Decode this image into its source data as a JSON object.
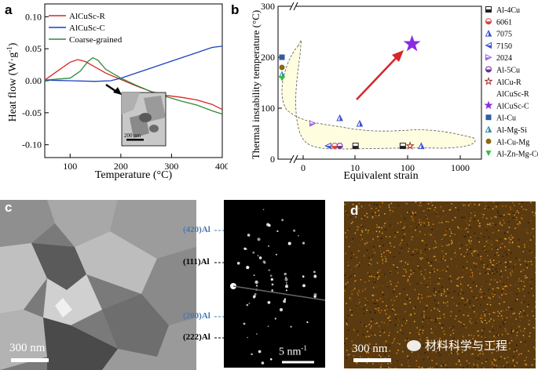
{
  "panel_a": {
    "letter": "a",
    "ylabel_main": "Heat flow (W·g",
    "ylabel_sup": "-1",
    "ylabel_close": ")",
    "xlabel": "Temperature (°C)",
    "inset_scale": "200 nm",
    "colors": {
      "R": "#d62728",
      "C": "#1f3fbf",
      "G": "#2e8b3a"
    }
  },
  "panel_b": {
    "letter": "b",
    "ylabel": "Thermal instability temperature (°C)",
    "xlabel": "Equivalent strain",
    "region_color": "#fffde0"
  },
  "panel_c": {
    "letter": "c",
    "scale_left": "300 nm",
    "scale_saed_main": "5 nm",
    "scale_saed_sup": "-1",
    "ring_labels": [
      {
        "text": "(420)Al",
        "color": "#4a78b0"
      },
      {
        "text": "(111)Al",
        "color": "#000000"
      },
      {
        "text": "(200)Al",
        "color": "#4a78b0"
      },
      {
        "text": "(222)Al",
        "color": "#000000"
      }
    ]
  },
  "panel_d": {
    "letter": "d",
    "scale": "300 nm",
    "watermark": "材料科学与工程"
  },
  "chart_data": [
    {
      "type": "line",
      "title": "",
      "xlabel": "Temperature (°C)",
      "ylabel": "Heat flow (W·g-1)",
      "xlim": [
        50,
        400
      ],
      "ylim": [
        -0.12,
        0.12
      ],
      "xticks": [
        100,
        200,
        300,
        400
      ],
      "yticks": [
        -0.1,
        -0.05,
        0.0,
        0.05,
        0.1
      ],
      "legend_position": "top-left",
      "series": [
        {
          "name": "AlCuSc-R",
          "color": "#d62728",
          "x": [
            50,
            80,
            100,
            115,
            130,
            150,
            170,
            200,
            230,
            260,
            290,
            320,
            350,
            380,
            400
          ],
          "y": [
            0.001,
            0.018,
            0.029,
            0.033,
            0.03,
            0.021,
            0.012,
            0.002,
            -0.008,
            -0.017,
            -0.023,
            -0.026,
            -0.03,
            -0.037,
            -0.045
          ]
        },
        {
          "name": "AlCuSc-C",
          "color": "#1f3fbf",
          "x": [
            50,
            100,
            150,
            180,
            200,
            230,
            260,
            290,
            320,
            350,
            380,
            400
          ],
          "y": [
            0.001,
            0.0,
            -0.001,
            0.0,
            0.004,
            0.012,
            0.02,
            0.028,
            0.036,
            0.044,
            0.052,
            0.054
          ]
        },
        {
          "name": "Coarse-grained",
          "color": "#2e8b3a",
          "x": [
            50,
            100,
            120,
            135,
            145,
            155,
            170,
            200,
            230,
            260,
            290,
            320,
            350,
            380,
            400
          ],
          "y": [
            0.001,
            0.004,
            0.015,
            0.03,
            0.036,
            0.032,
            0.018,
            0.004,
            -0.007,
            -0.017,
            -0.025,
            -0.032,
            -0.038,
            -0.047,
            -0.052
          ]
        }
      ]
    },
    {
      "type": "scatter",
      "title": "",
      "xlabel": "Equivalent strain",
      "ylabel": "Thermal instability temperature (°C)",
      "ylim": [
        0,
        300
      ],
      "yticks": [
        0,
        100,
        200,
        300
      ],
      "xticks": [
        "0",
        "10",
        "100",
        "1000"
      ],
      "legend_position": "right",
      "series": [
        {
          "name": "Al-4Cu",
          "marker": "square-half",
          "color": "#222222",
          "x": [
            10,
            80
          ],
          "y": [
            26,
            26
          ]
        },
        {
          "name": "6061",
          "marker": "circle-half",
          "color": "#e04040",
          "x": [
            4
          ],
          "y": [
            26
          ]
        },
        {
          "name": "7075",
          "marker": "triangle-up",
          "color": "#3a4fd0",
          "x": [
            5,
            12,
            180
          ],
          "y": [
            81,
            70,
            26
          ]
        },
        {
          "name": "7150",
          "marker": "triangle-left",
          "color": "#3a4fd0",
          "x": [
            3
          ],
          "y": [
            26
          ]
        },
        {
          "name": "2024",
          "marker": "triangle-right",
          "color": "#a060e0",
          "x": [
            0.5
          ],
          "y": [
            70
          ]
        },
        {
          "name": "Al-5Cu",
          "marker": "circle-half",
          "color": "#6b2fa0",
          "x": [
            5
          ],
          "y": [
            26
          ]
        },
        {
          "name": "AlCu-R",
          "marker": "star-open",
          "color": "#a0302a",
          "x": [
            110
          ],
          "y": [
            26
          ]
        },
        {
          "name": "AlCuSc-R",
          "marker": "none",
          "color": "#000000",
          "x": [],
          "y": []
        },
        {
          "name": "AlCuSc-C",
          "marker": "star",
          "color": "#8a2be2",
          "x": [
            120
          ],
          "y": [
            226
          ]
        },
        {
          "name": "Al-Cu",
          "marker": "square",
          "color": "#2f5fa0",
          "x": [
            -0.2
          ],
          "y": [
            200
          ]
        },
        {
          "name": "Al-Mg-Si",
          "marker": "triangle-up",
          "color": "#2f8fa0",
          "x": [
            -0.2
          ],
          "y": [
            166
          ]
        },
        {
          "name": "Al-Cu-Mg",
          "marker": "circle",
          "color": "#8a6a10",
          "x": [
            -0.2
          ],
          "y": [
            180
          ]
        },
        {
          "name": "Al-Zn-Mg-Cu",
          "marker": "triangle-down",
          "color": "#2ec040",
          "x": [
            -0.2
          ],
          "y": [
            158
          ]
        }
      ]
    }
  ]
}
